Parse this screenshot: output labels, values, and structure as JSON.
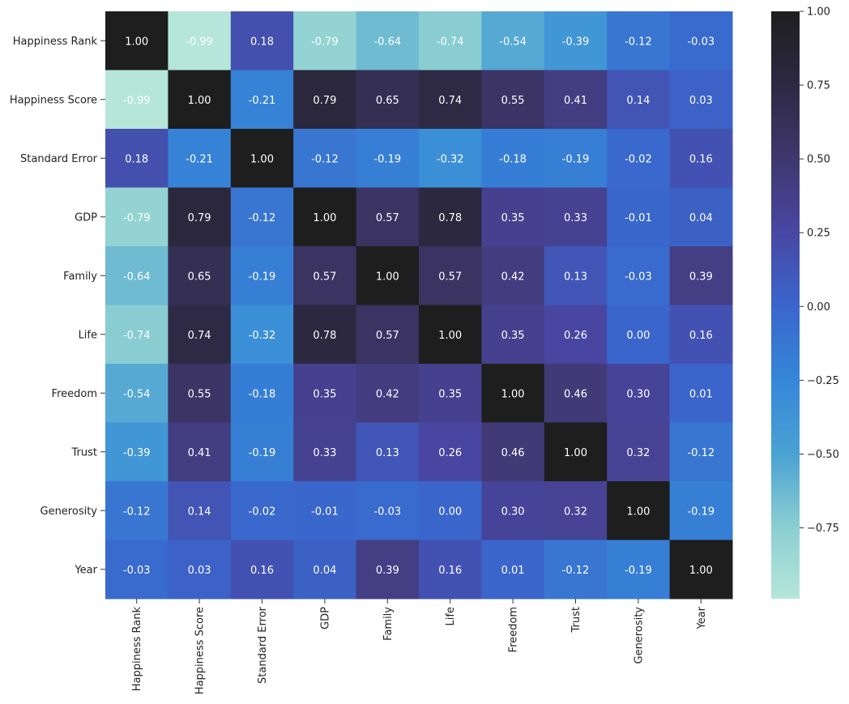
{
  "chart_data": {
    "type": "heatmap",
    "title": "",
    "xlabel": "",
    "ylabel": "",
    "row_labels": [
      "Happiness Rank",
      "Happiness Score",
      "Standard Error",
      "GDP",
      "Family",
      "Life",
      "Freedom",
      "Trust",
      "Generosity",
      "Year"
    ],
    "col_labels": [
      "Happiness Rank",
      "Happiness Score",
      "Standard Error",
      "GDP",
      "Family",
      "Life",
      "Freedom",
      "Trust",
      "Generosity",
      "Year"
    ],
    "values": [
      [
        1.0,
        -0.99,
        0.18,
        -0.79,
        -0.64,
        -0.74,
        -0.54,
        -0.39,
        -0.12,
        -0.03
      ],
      [
        -0.99,
        1.0,
        -0.21,
        0.79,
        0.65,
        0.74,
        0.55,
        0.41,
        0.14,
        0.03
      ],
      [
        0.18,
        -0.21,
        1.0,
        -0.12,
        -0.19,
        -0.32,
        -0.18,
        -0.19,
        -0.02,
        0.16
      ],
      [
        -0.79,
        0.79,
        -0.12,
        1.0,
        0.57,
        0.78,
        0.35,
        0.33,
        -0.01,
        0.04
      ],
      [
        -0.64,
        0.65,
        -0.19,
        0.57,
        1.0,
        0.57,
        0.42,
        0.13,
        -0.03,
        0.39
      ],
      [
        -0.74,
        0.74,
        -0.32,
        0.78,
        0.57,
        1.0,
        0.35,
        0.26,
        0.0,
        0.16
      ],
      [
        -0.54,
        0.55,
        -0.18,
        0.35,
        0.42,
        0.35,
        1.0,
        0.46,
        0.3,
        0.01
      ],
      [
        -0.39,
        0.41,
        -0.19,
        0.33,
        0.13,
        0.26,
        0.46,
        1.0,
        0.32,
        -0.12
      ],
      [
        -0.12,
        0.14,
        -0.02,
        -0.01,
        -0.03,
        0.0,
        0.3,
        0.32,
        1.0,
        -0.19
      ],
      [
        -0.03,
        0.03,
        0.16,
        0.04,
        0.39,
        0.16,
        0.01,
        -0.12,
        -0.19,
        1.0
      ]
    ],
    "colorbar": {
      "vmin": -0.99,
      "vmax": 1.0,
      "ticks": [
        1.0,
        0.75,
        0.5,
        0.25,
        0.0,
        -0.25,
        -0.5,
        -0.75
      ],
      "tick_labels": [
        "1.00",
        "0.75",
        "0.50",
        "0.25",
        "0.00",
        "−0.25",
        "−0.50",
        "−0.75"
      ]
    },
    "colormap": {
      "name": "icefire-centered",
      "stops": [
        {
          "value": -0.99,
          "color": "#b5e6d9"
        },
        {
          "value": -0.75,
          "color": "#8ccfd2"
        },
        {
          "value": -0.5,
          "color": "#4aa2d3"
        },
        {
          "value": -0.25,
          "color": "#3587d8"
        },
        {
          "value": 0.0,
          "color": "#3a66cc"
        },
        {
          "value": 0.25,
          "color": "#4847a3"
        },
        {
          "value": 0.5,
          "color": "#40376e"
        },
        {
          "value": 0.75,
          "color": "#2d2943"
        },
        {
          "value": 1.0,
          "color": "#1e1e1e"
        }
      ]
    },
    "annotation_format": "2 decimals"
  }
}
